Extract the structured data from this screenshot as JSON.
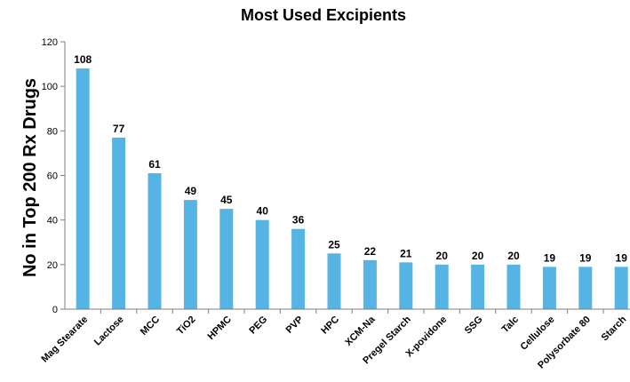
{
  "chart_data": {
    "type": "bar",
    "title": "Most Used Excipients",
    "ylabel": "No in Top 200 Rx Drugs",
    "xlabel": "",
    "ylim": [
      0,
      120
    ],
    "yticks": [
      0,
      20,
      40,
      60,
      80,
      100,
      120
    ],
    "grid": false,
    "legend": "none",
    "bar_color": "#56b4e4",
    "categories": [
      "Mag Stearate",
      "Lactose",
      "MCC",
      "TiO2",
      "HPMC",
      "PEG",
      "PVP",
      "HPC",
      "XCM-Na",
      "Pregel Starch",
      "X-povidone",
      "SSG",
      "Talc",
      "Cellulose",
      "Polysorbate 80",
      "Starch"
    ],
    "values": [
      108,
      77,
      61,
      49,
      45,
      40,
      36,
      25,
      22,
      21,
      20,
      20,
      20,
      19,
      19,
      19
    ]
  }
}
